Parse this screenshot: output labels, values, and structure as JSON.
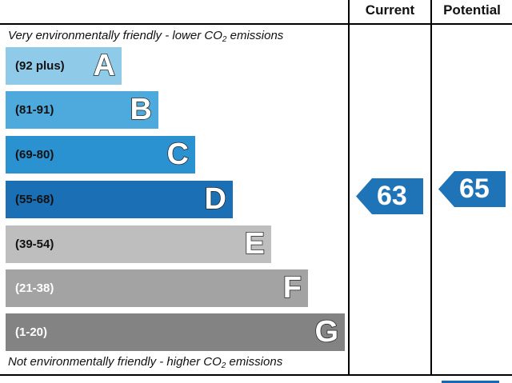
{
  "chart_data": {
    "type": "bar",
    "title": "",
    "columns": [
      "Current",
      "Potential"
    ],
    "top_note": "Very environmentally friendly - lower CO",
    "top_note_sub": "2",
    "top_note_end": " emissions",
    "bottom_note": "Not environmentally friendly - higher CO",
    "bottom_note_sub": "2",
    "bottom_note_end": " emissions",
    "bands": [
      {
        "range": "(92 plus)",
        "letter": "A",
        "color": "#8fcbe9",
        "text_color": "#111111"
      },
      {
        "range": "(81-91)",
        "letter": "B",
        "color": "#4eaadd",
        "text_color": "#111111"
      },
      {
        "range": "(69-80)",
        "letter": "C",
        "color": "#2b92d2",
        "text_color": "#111111"
      },
      {
        "range": "(55-68)",
        "letter": "D",
        "color": "#1b6fb5",
        "text_color": "#111111"
      },
      {
        "range": "(39-54)",
        "letter": "E",
        "color": "#bebebe",
        "text_color": "#111111"
      },
      {
        "range": "(21-38)",
        "letter": "F",
        "color": "#a3a3a3",
        "text_color": "#ffffff"
      },
      {
        "range": "(1-20)",
        "letter": "G",
        "color": "#838383",
        "text_color": "#ffffff"
      }
    ],
    "current": {
      "value": "63",
      "band": "D",
      "color": "#1f74b8"
    },
    "potential": {
      "value": "65",
      "band": "D",
      "color": "#1f74b8"
    }
  }
}
